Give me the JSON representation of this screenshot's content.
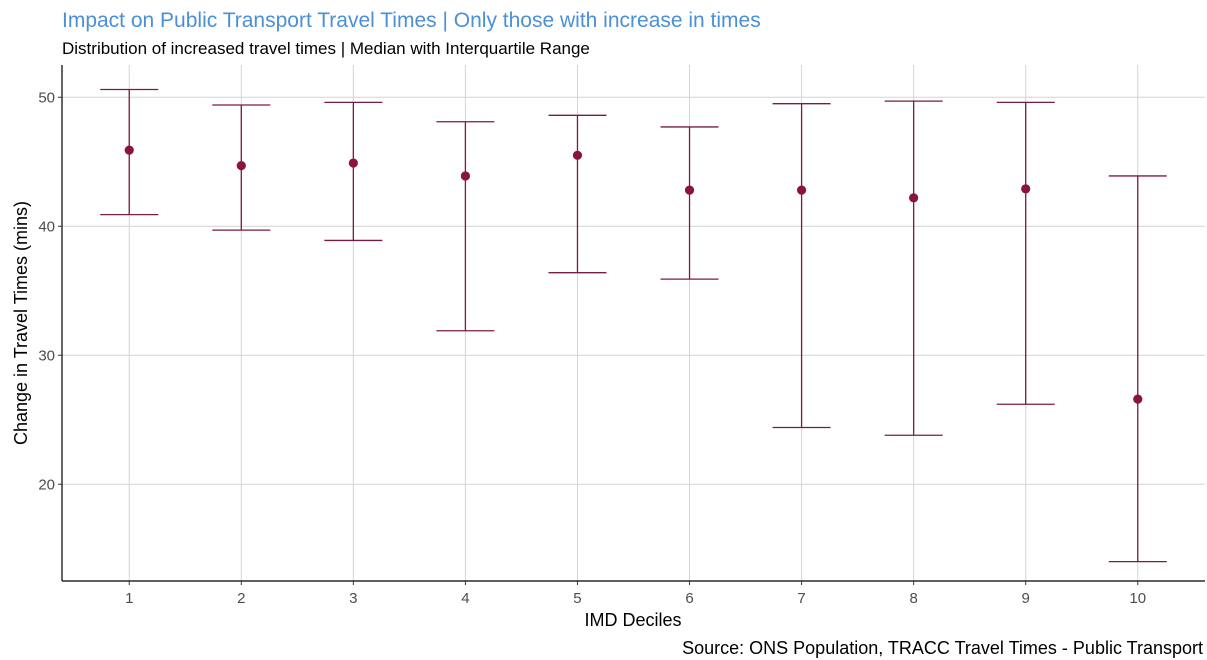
{
  "chart_data": {
    "type": "scatter",
    "title": "Impact on Public Transport Travel Times | Only those with increase in times",
    "subtitle": "Distribution of increased travel times | Median with Interquartile Range",
    "xlabel": "IMD Deciles",
    "ylabel": "Change in Travel Times (mins)",
    "caption": "Source: ONS Population, TRACC Travel Times - Public Transport",
    "categories": [
      "1",
      "2",
      "3",
      "4",
      "5",
      "6",
      "7",
      "8",
      "9",
      "10"
    ],
    "median": [
      45.9,
      44.7,
      44.9,
      43.9,
      45.5,
      42.8,
      42.8,
      42.2,
      42.9,
      26.6
    ],
    "q1": [
      40.9,
      39.7,
      38.9,
      31.9,
      36.4,
      35.9,
      24.4,
      23.8,
      26.2,
      14.0
    ],
    "q3": [
      50.6,
      49.4,
      49.6,
      48.1,
      48.6,
      47.7,
      49.5,
      49.7,
      49.6,
      43.9
    ],
    "yticks": [
      20,
      30,
      40,
      50
    ],
    "ylim": [
      12.5,
      52.5
    ],
    "grid": true,
    "colors": {
      "title": "#4a90d9",
      "errorbar": "#7a1b45",
      "point": "#8a1538",
      "grid": "#d4d4d4"
    }
  }
}
